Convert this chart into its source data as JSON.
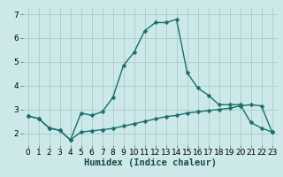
{
  "xlabel": "Humidex (Indice chaleur)",
  "ylabel": "",
  "xlim": [
    -0.5,
    23.5
  ],
  "ylim": [
    1.5,
    7.3
  ],
  "yticks": [
    2,
    3,
    4,
    5,
    6,
    7
  ],
  "xticks": [
    0,
    1,
    2,
    3,
    4,
    5,
    6,
    7,
    8,
    9,
    10,
    11,
    12,
    13,
    14,
    15,
    16,
    17,
    18,
    19,
    20,
    21,
    22,
    23
  ],
  "background_color": "#cde8e8",
  "grid_color": "#a8cccc",
  "line_color": "#1a6e6e",
  "curve1_x": [
    0,
    1,
    2,
    3,
    4,
    5,
    6,
    7,
    8,
    9,
    10,
    11,
    12,
    13,
    14,
    15,
    16,
    17,
    18,
    19,
    20,
    21,
    22,
    23
  ],
  "curve1_y": [
    2.72,
    2.62,
    2.22,
    2.12,
    1.72,
    2.85,
    2.75,
    2.9,
    3.5,
    4.85,
    5.4,
    6.3,
    6.65,
    6.65,
    6.78,
    4.55,
    3.9,
    3.6,
    3.2,
    3.2,
    3.2,
    2.45,
    2.22,
    2.05
  ],
  "curve2_x": [
    0,
    1,
    2,
    3,
    4,
    5,
    6,
    7,
    8,
    9,
    10,
    11,
    12,
    13,
    14,
    15,
    16,
    17,
    18,
    19,
    20,
    21,
    22,
    23
  ],
  "curve2_y": [
    2.72,
    2.62,
    2.22,
    2.12,
    1.72,
    2.05,
    2.1,
    2.15,
    2.2,
    2.3,
    2.4,
    2.5,
    2.6,
    2.7,
    2.75,
    2.85,
    2.9,
    2.95,
    3.0,
    3.05,
    3.15,
    3.2,
    3.15,
    2.05
  ],
  "marker": "D",
  "markersize": 2.5,
  "linewidth": 1.0,
  "tick_fontsize": 6.5,
  "xlabel_fontsize": 7.5
}
